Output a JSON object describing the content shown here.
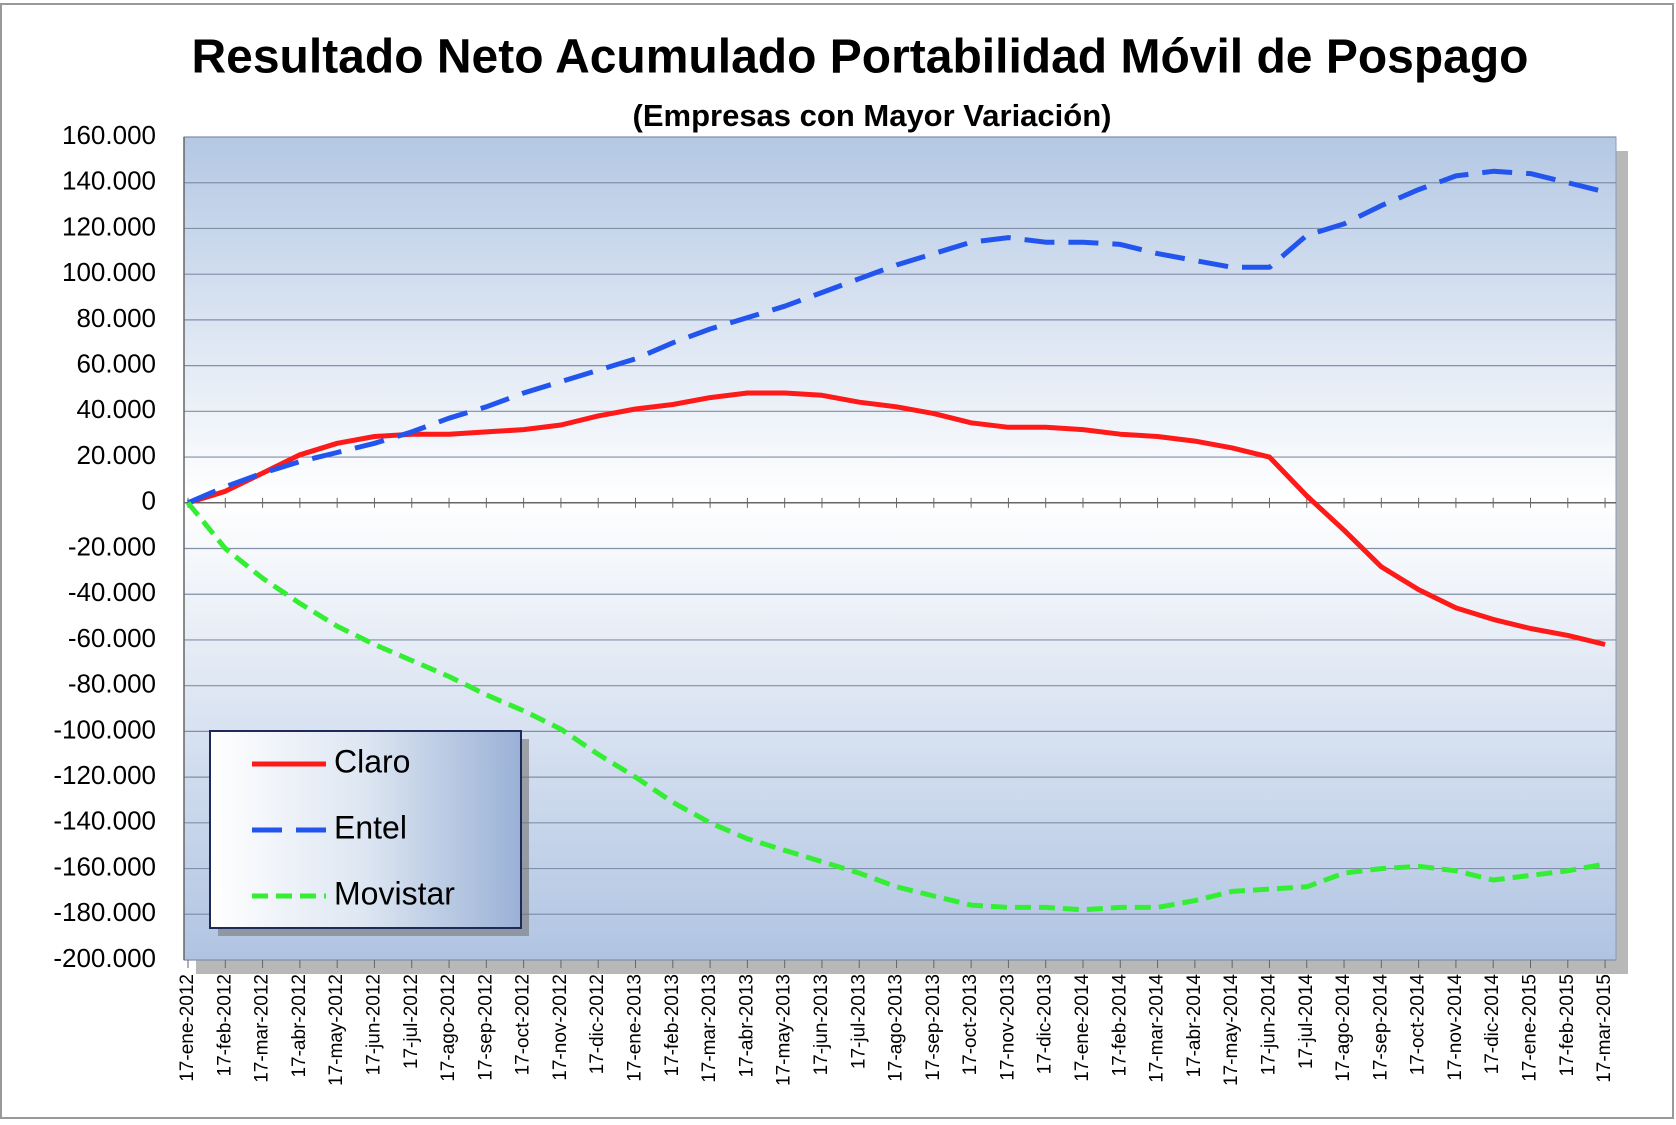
{
  "chart_data": {
    "type": "line",
    "title": "Resultado Neto Acumulado Portabilidad Móvil de Pospago",
    "subtitle": "(Empresas con Mayor Variación)",
    "categories": [
      "17-ene-2012",
      "17-feb-2012",
      "17-mar-2012",
      "17-abr-2012",
      "17-may-2012",
      "17-jun-2012",
      "17-jul-2012",
      "17-ago-2012",
      "17-sep-2012",
      "17-oct-2012",
      "17-nov-2012",
      "17-dic-2012",
      "17-ene-2013",
      "17-feb-2013",
      "17-mar-2013",
      "17-abr-2013",
      "17-may-2013",
      "17-jun-2013",
      "17-jul-2013",
      "17-ago-2013",
      "17-sep-2013",
      "17-oct-2013",
      "17-nov-2013",
      "17-dic-2013",
      "17-ene-2014",
      "17-feb-2014",
      "17-mar-2014",
      "17-abr-2014",
      "17-may-2014",
      "17-jun-2014",
      "17-jul-2014",
      "17-ago-2014",
      "17-sep-2014",
      "17-oct-2014",
      "17-nov-2014",
      "17-dic-2014",
      "17-ene-2015",
      "17-feb-2015",
      "17-mar-2015"
    ],
    "series": [
      {
        "name": "Claro",
        "color": "#ff1a1a",
        "dash": "solid",
        "values": [
          0,
          5000,
          13000,
          21000,
          26000,
          29000,
          30000,
          30000,
          31000,
          32000,
          34000,
          38000,
          41000,
          43000,
          46000,
          48000,
          48000,
          47000,
          44000,
          42000,
          39000,
          35000,
          33000,
          33000,
          32000,
          30000,
          29000,
          27000,
          24000,
          20000,
          3000,
          -12000,
          -28000,
          -38000,
          -46000,
          -51000,
          -55000,
          -58000,
          -62000
        ]
      },
      {
        "name": "Entel",
        "color": "#2255ee",
        "dash": "long",
        "values": [
          0,
          7000,
          13000,
          18000,
          22000,
          26000,
          31000,
          37000,
          42000,
          48000,
          53000,
          58000,
          63000,
          70000,
          76000,
          81000,
          86000,
          92000,
          98000,
          104000,
          109000,
          114000,
          116000,
          114000,
          114000,
          113000,
          109000,
          106000,
          103000,
          103000,
          117000,
          122000,
          130000,
          137000,
          143000,
          145000,
          144000,
          140000,
          136000
        ]
      },
      {
        "name": "Movistar",
        "color": "#33ee33",
        "dash": "short",
        "values": [
          0,
          -20000,
          -33000,
          -44000,
          -54000,
          -62000,
          -69000,
          -76000,
          -84000,
          -91000,
          -99000,
          -110000,
          -120000,
          -131000,
          -140000,
          -147000,
          -152000,
          -157000,
          -162000,
          -168000,
          -172000,
          -176000,
          -177000,
          -177000,
          -178000,
          -177000,
          -177000,
          -174000,
          -170000,
          -169000,
          -168000,
          -162000,
          -160000,
          -159000,
          -161000,
          -165000,
          -163000,
          -161000,
          -158000
        ]
      }
    ],
    "ylim": [
      -200000,
      160000
    ],
    "yticks": [
      {
        "value": -200000,
        "label": "-200.000"
      },
      {
        "value": -180000,
        "label": "-180.000"
      },
      {
        "value": -160000,
        "label": "-160.000"
      },
      {
        "value": -140000,
        "label": "-140.000"
      },
      {
        "value": -120000,
        "label": "-120.000"
      },
      {
        "value": -100000,
        "label": "-100.000"
      },
      {
        "value": -80000,
        "label": "-80.000"
      },
      {
        "value": -60000,
        "label": "-60.000"
      },
      {
        "value": -40000,
        "label": "-40.000"
      },
      {
        "value": -20000,
        "label": "-20.000"
      },
      0,
      {
        "value": 20000,
        "label": "20.000"
      },
      {
        "value": 40000,
        "label": "40.000"
      },
      {
        "value": 60000,
        "label": "60.000"
      },
      {
        "value": 80000,
        "label": "80.000"
      },
      {
        "value": 100000,
        "label": "100.000"
      },
      {
        "value": 120000,
        "label": "120.000"
      },
      {
        "value": 140000,
        "label": "140.000"
      },
      {
        "value": 160000,
        "label": "160.000"
      }
    ],
    "grid": true,
    "legend": "lower left"
  }
}
